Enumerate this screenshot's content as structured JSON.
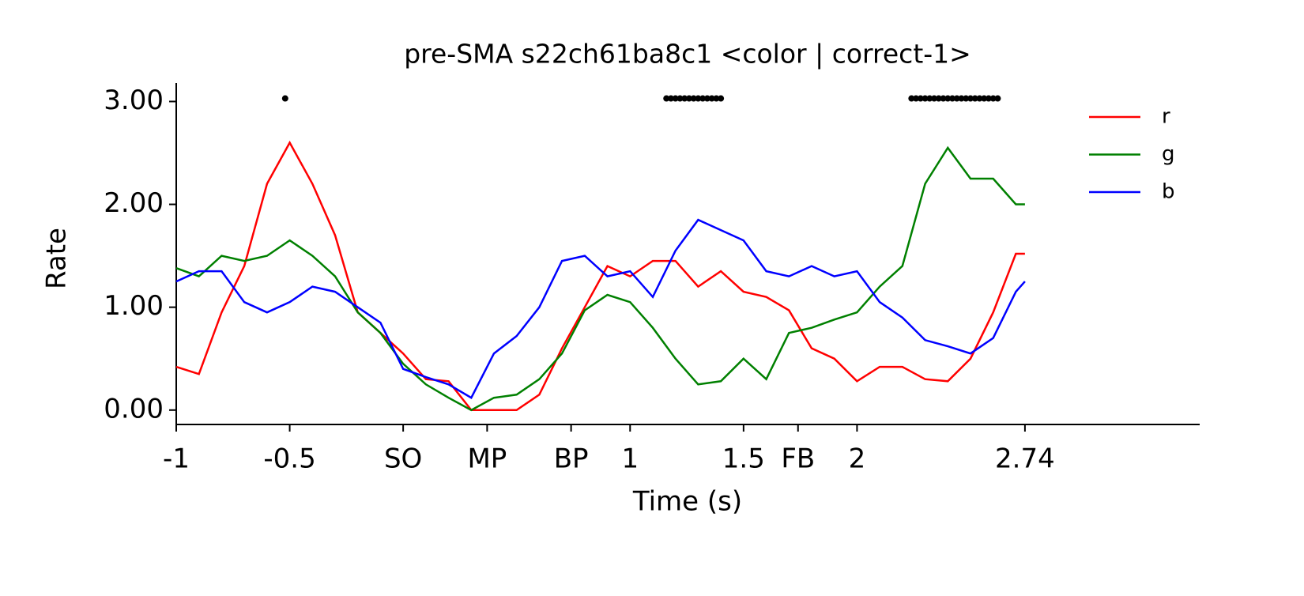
{
  "chart_data": {
    "type": "line",
    "title": "pre-SMA s22ch61ba8c1 <color | correct-1>",
    "x_label": "Time (s)",
    "y_label": "Rate",
    "xlim": [
      -1,
      3.51
    ],
    "ylim": [
      -0.14,
      3.18
    ],
    "xticks": [
      -1,
      -0.5,
      {
        "value": 0,
        "label": "SO"
      },
      {
        "value": 0.37,
        "label": "MP"
      },
      {
        "value": 0.74,
        "label": "BP"
      },
      1,
      1.5,
      {
        "value": 1.74,
        "label": "FB"
      },
      2,
      2.74
    ],
    "yticks": [
      {
        "value": 0,
        "label": "0.00"
      },
      {
        "value": 1,
        "label": "1.00"
      },
      {
        "value": 2,
        "label": "2.00"
      },
      {
        "value": 3,
        "label": "3.00"
      }
    ],
    "legend_loc": "upper right",
    "x": [
      -1.0,
      -0.9,
      -0.8,
      -0.7,
      -0.6,
      -0.5,
      -0.4,
      -0.3,
      -0.2,
      -0.1,
      0.0,
      0.1,
      0.2,
      0.3,
      0.4,
      0.5,
      0.6,
      0.7,
      0.8,
      0.9,
      1.0,
      1.1,
      1.2,
      1.3,
      1.4,
      1.5,
      1.6,
      1.7,
      1.8,
      1.9,
      2.0,
      2.1,
      2.2,
      2.3,
      2.4,
      2.5,
      2.6,
      2.7,
      2.74
    ],
    "series": [
      {
        "name": "r",
        "color": "#ff0000",
        "values": [
          0.42,
          0.35,
          0.95,
          1.4,
          2.2,
          2.6,
          2.2,
          1.7,
          0.95,
          0.75,
          0.55,
          0.3,
          0.28,
          0.0,
          0.0,
          0.0,
          0.15,
          0.6,
          1.0,
          1.4,
          1.3,
          1.45,
          1.45,
          1.2,
          1.35,
          1.15,
          1.1,
          0.97,
          0.6,
          0.5,
          0.28,
          0.42,
          0.42,
          0.3,
          0.28,
          0.5,
          0.95,
          1.52,
          1.52
        ]
      },
      {
        "name": "g",
        "color": "#008000",
        "values": [
          1.38,
          1.3,
          1.5,
          1.45,
          1.5,
          1.65,
          1.5,
          1.3,
          0.95,
          0.75,
          0.45,
          0.25,
          0.12,
          0.0,
          0.12,
          0.15,
          0.3,
          0.55,
          0.97,
          1.12,
          1.05,
          0.8,
          0.5,
          0.25,
          0.28,
          0.5,
          0.3,
          0.75,
          0.8,
          0.88,
          0.95,
          1.2,
          1.4,
          2.2,
          2.55,
          2.25,
          2.25,
          2.0,
          2.0
        ]
      },
      {
        "name": "b",
        "color": "#0000ff",
        "values": [
          1.25,
          1.35,
          1.35,
          1.05,
          0.95,
          1.05,
          1.2,
          1.15,
          1.0,
          0.85,
          0.4,
          0.32,
          0.25,
          0.12,
          0.55,
          0.72,
          1.0,
          1.45,
          1.5,
          1.3,
          1.35,
          1.1,
          1.55,
          1.85,
          1.75,
          1.65,
          1.35,
          1.3,
          1.4,
          1.3,
          1.35,
          1.05,
          0.9,
          0.68,
          0.62,
          0.55,
          0.7,
          1.15,
          1.25
        ]
      }
    ],
    "markers": {
      "color": "#000000",
      "y": 3.03,
      "x": [
        -0.52,
        1.16,
        1.18,
        1.2,
        1.22,
        1.24,
        1.26,
        1.28,
        1.3,
        1.32,
        1.34,
        1.36,
        1.38,
        1.4,
        2.24,
        2.26,
        2.28,
        2.3,
        2.32,
        2.34,
        2.36,
        2.38,
        2.4,
        2.42,
        2.44,
        2.46,
        2.48,
        2.5,
        2.52,
        2.54,
        2.56,
        2.58,
        2.6,
        2.62
      ]
    }
  }
}
